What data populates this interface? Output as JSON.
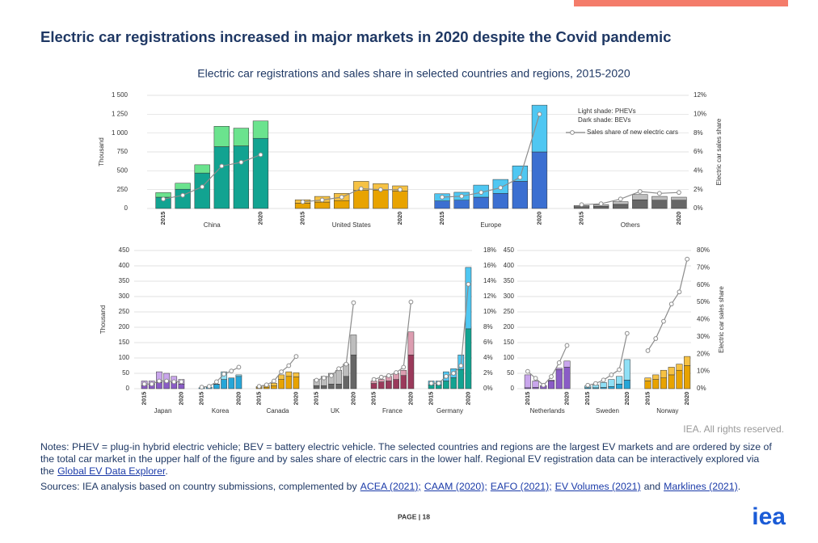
{
  "heading": "Electric car registrations increased in major markets in 2020 despite the Covid pandemic",
  "subtitle": "Electric car registrations and sales share in selected countries and regions, 2015-2020",
  "chart_data": [
    {
      "type": "bar",
      "categories": [
        "2015",
        null,
        null,
        null,
        null,
        "2020"
      ],
      "ylabel": "Thousand",
      "y2label": "Electric car sales share",
      "ylim": [
        0,
        1500
      ],
      "yticks": [
        0,
        250,
        500,
        750,
        {
          "value": 1000,
          "label": "1 000"
        },
        {
          "value": 1250,
          "label": "1 250"
        },
        {
          "value": 1500,
          "label": "1 500"
        }
      ],
      "y2lim": [
        0,
        12
      ],
      "y2ticks": [
        {
          "value": 0,
          "label": "0%"
        },
        {
          "value": 2,
          "label": "2%"
        },
        {
          "value": 4,
          "label": "4%"
        },
        {
          "value": 6,
          "label": "6%"
        },
        {
          "value": 8,
          "label": "8%"
        },
        {
          "value": 10,
          "label": "10%"
        },
        {
          "value": 12,
          "label": "12%"
        }
      ],
      "grid": true,
      "line_color": "#8c8c8c",
      "legend": [
        "Light shade: PHEVs",
        "Dark shade: BEVs",
        "Sales share of new electric cars"
      ],
      "groups": [
        {
          "name": "China",
          "bev_color": "#12a391",
          "phev_color": "#6be38e",
          "bev": [
            150,
            255,
            470,
            820,
            830,
            930
          ],
          "phev": [
            60,
            80,
            110,
            270,
            235,
            230
          ],
          "share": [
            1.0,
            1.4,
            2.3,
            4.5,
            4.9,
            5.7
          ]
        },
        {
          "name": "United States",
          "bev_color": "#e8a300",
          "phev_color": "#f6c244",
          "bev": [
            70,
            85,
            105,
            240,
            245,
            230
          ],
          "phev": [
            45,
            75,
            95,
            120,
            85,
            70
          ],
          "share": [
            0.7,
            0.9,
            1.2,
            2.1,
            2.0,
            2.0
          ]
        },
        {
          "name": "Europe",
          "bev_color": "#3b6fd1",
          "phev_color": "#4fc7f2",
          "bev": [
            100,
            110,
            150,
            200,
            360,
            750
          ],
          "phev": [
            95,
            105,
            160,
            185,
            205,
            620
          ],
          "share": [
            1.2,
            1.3,
            1.7,
            2.2,
            3.3,
            10.0
          ]
        },
        {
          "name": "Others",
          "bev_color": "#666666",
          "phev_color": "#bdbdbd",
          "bev": [
            25,
            30,
            55,
            115,
            110,
            110
          ],
          "phev": [
            15,
            20,
            35,
            70,
            50,
            40
          ],
          "share": [
            0.4,
            0.5,
            1.0,
            1.8,
            1.6,
            1.7
          ]
        }
      ]
    },
    {
      "type": "bar",
      "categories": [
        "2015",
        null,
        null,
        null,
        null,
        "2020"
      ],
      "ylabel": "Thousand",
      "ylim": [
        0,
        450
      ],
      "yticks": [
        0,
        50,
        100,
        150,
        200,
        250,
        300,
        350,
        400,
        450
      ],
      "y2lim": [
        0,
        18
      ],
      "y2ticks": [
        {
          "value": 0,
          "label": "0%"
        },
        {
          "value": 2,
          "label": "2%"
        },
        {
          "value": 4,
          "label": "4%"
        },
        {
          "value": 6,
          "label": "6%"
        },
        {
          "value": 8,
          "label": "8%"
        },
        {
          "value": 10,
          "label": "10%"
        },
        {
          "value": 12,
          "label": "12%"
        },
        {
          "value": 14,
          "label": "14%"
        },
        {
          "value": 16,
          "label": "16%"
        },
        {
          "value": 18,
          "label": "18%"
        }
      ],
      "grid": true,
      "line_color": "#8c8c8c",
      "groups": [
        {
          "name": "Japan",
          "bev_color": "#8a5cc6",
          "phev_color": "#c9a6ec",
          "bev": [
            10,
            15,
            20,
            25,
            20,
            15
          ],
          "phev": [
            15,
            10,
            35,
            25,
            20,
            15
          ],
          "share": [
            0.6,
            0.6,
            1.0,
            1.0,
            0.9,
            0.9
          ]
        },
        {
          "name": "Korea",
          "bev_color": "#27a6d8",
          "phev_color": "#8fe0f6",
          "bev": [
            3,
            5,
            14,
            30,
            35,
            40
          ],
          "phev": [
            0,
            0,
            1,
            25,
            0,
            5
          ],
          "share": [
            0.2,
            0.3,
            0.9,
            1.9,
            2.3,
            2.8
          ]
        },
        {
          "name": "Canada",
          "bev_color": "#e8a300",
          "phev_color": "#f6c244",
          "bev": [
            3,
            5,
            9,
            30,
            40,
            38
          ],
          "phev": [
            4,
            6,
            9,
            15,
            15,
            14
          ],
          "share": [
            0.3,
            0.5,
            1.0,
            2.2,
            3.0,
            4.2
          ]
        },
        {
          "name": "UK",
          "bev_color": "#666666",
          "phev_color": "#bdbdbd",
          "bev": [
            10,
            10,
            15,
            15,
            40,
            110
          ],
          "phev": [
            20,
            30,
            35,
            45,
            40,
            65
          ],
          "share": [
            1.1,
            1.4,
            1.7,
            2.6,
            3.2,
            11.2
          ]
        },
        {
          "name": "France",
          "bev_color": "#9b3a5b",
          "phev_color": "#dc9db0",
          "bev": [
            17,
            22,
            25,
            30,
            43,
            110
          ],
          "phev": [
            8,
            8,
            15,
            20,
            17,
            75
          ],
          "share": [
            1.2,
            1.5,
            1.7,
            2.1,
            2.8,
            11.3
          ]
        },
        {
          "name": "Germany",
          "bev_color": "#12a391",
          "phev_color": "#4fc7f2",
          "bev": [
            12,
            12,
            25,
            36,
            63,
            195
          ],
          "phev": [
            13,
            13,
            30,
            29,
            47,
            200
          ],
          "share": [
            0.7,
            0.7,
            1.6,
            2.0,
            3.0,
            13.6
          ]
        }
      ]
    },
    {
      "type": "bar",
      "categories": [
        "2015",
        null,
        null,
        null,
        null,
        "2020"
      ],
      "y2label": "Electric car sales share",
      "ylim": [
        0,
        450
      ],
      "yticks": [
        0,
        50,
        100,
        150,
        200,
        250,
        300,
        350,
        400,
        450
      ],
      "y2lim": [
        0,
        80
      ],
      "y2ticks": [
        {
          "value": 0,
          "label": "0%"
        },
        {
          "value": 10,
          "label": "10%"
        },
        {
          "value": 20,
          "label": "20%"
        },
        {
          "value": 30,
          "label": "30%"
        },
        {
          "value": 40,
          "label": "40%"
        },
        {
          "value": 50,
          "label": "50%"
        },
        {
          "value": 60,
          "label": "60%"
        },
        {
          "value": 70,
          "label": "70%"
        },
        {
          "value": 80,
          "label": "80%"
        }
      ],
      "grid": true,
      "line_color": "#8c8c8c",
      "groups": [
        {
          "name": "Netherlands",
          "bev_color": "#8a5cc6",
          "phev_color": "#c9a6ec",
          "bev": [
            3,
            4,
            10,
            25,
            62,
            70
          ],
          "phev": [
            42,
            21,
            0,
            3,
            5,
            20
          ],
          "share": [
            10,
            6,
            2,
            7,
            15,
            25
          ]
        },
        {
          "name": "Sweden",
          "bev_color": "#27a6d8",
          "phev_color": "#8fe0f6",
          "bev": [
            3,
            3,
            4,
            7,
            15,
            28
          ],
          "phev": [
            6,
            9,
            16,
            23,
            25,
            67
          ],
          "share": [
            2,
            3,
            5,
            8,
            11,
            32
          ]
        },
        {
          "name": "Norway",
          "bev_color": "#e8a300",
          "phev_color": "#f6c244",
          "bev": [
            25,
            30,
            35,
            45,
            60,
            75
          ],
          "phev": [
            10,
            15,
            25,
            25,
            20,
            30
          ],
          "share": [
            22,
            29,
            39,
            49,
            56,
            75
          ]
        }
      ]
    }
  ],
  "rights": "IEA. All rights reserved.",
  "notes": [
    {
      "text": "Notes: PHEV = plug-in hybrid electric vehicle; BEV = battery electric vehicle. The selected countries and regions are the largest EV markets and are ordered by size of the total car market in the upper half of the figure and by sales share of electric cars in the lower half. Regional EV registration data can be interactively explored via the",
      "link": false
    },
    {
      "text": "Global EV Data Explorer",
      "link": true
    },
    {
      "text": ".",
      "link": false
    }
  ],
  "sources": [
    {
      "text": "Sources: IEA analysis based on country submissions, complemented by",
      "link": false
    },
    {
      "text": "ACEA (2021);",
      "link": true
    },
    {
      "text": "CAAM (2020);",
      "link": true
    },
    {
      "text": "EAFO (2021);",
      "link": true
    },
    {
      "text": "EV Volumes (2021)",
      "link": true
    },
    {
      "text": "and",
      "link": false
    },
    {
      "text": "Marklines (2021)",
      "link": true
    },
    {
      "text": ".",
      "link": false
    }
  ],
  "page": "PAGE | 18",
  "logo": "iea"
}
